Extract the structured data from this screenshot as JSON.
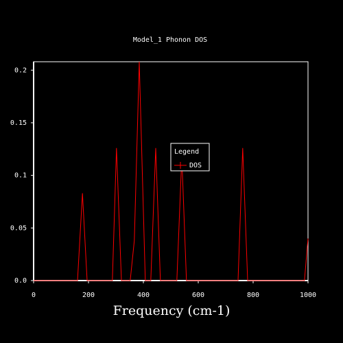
{
  "chart_data": {
    "type": "line",
    "title": "Model_1 Phonon DOS",
    "x_label": "Frequency (cm-1)",
    "x": [
      0,
      160,
      178,
      195,
      287,
      302,
      320,
      352,
      367,
      385,
      407,
      427,
      445,
      462,
      522,
      540,
      557,
      745,
      762,
      780,
      987,
      1000
    ],
    "series": [
      {
        "name": "DOS",
        "color": "#ff0000",
        "values": [
          0,
          0,
          0.083,
          0,
          0,
          0.126,
          0,
          0,
          0.038,
          0.208,
          0,
          0,
          0.126,
          0,
          0,
          0.118,
          0,
          0,
          0.126,
          0,
          0,
          0.04
        ]
      }
    ],
    "xlim": [
      0,
      1000
    ],
    "xticks": [
      0,
      200,
      400,
      600,
      800,
      1000
    ],
    "ylim": [
      0,
      0.208
    ],
    "yticks": [
      {
        "value": 0,
        "label": "0.0"
      },
      0.05,
      0.1,
      0.15,
      0.2
    ],
    "legend_title": "Legend",
    "legend": "center",
    "grid": false
  }
}
